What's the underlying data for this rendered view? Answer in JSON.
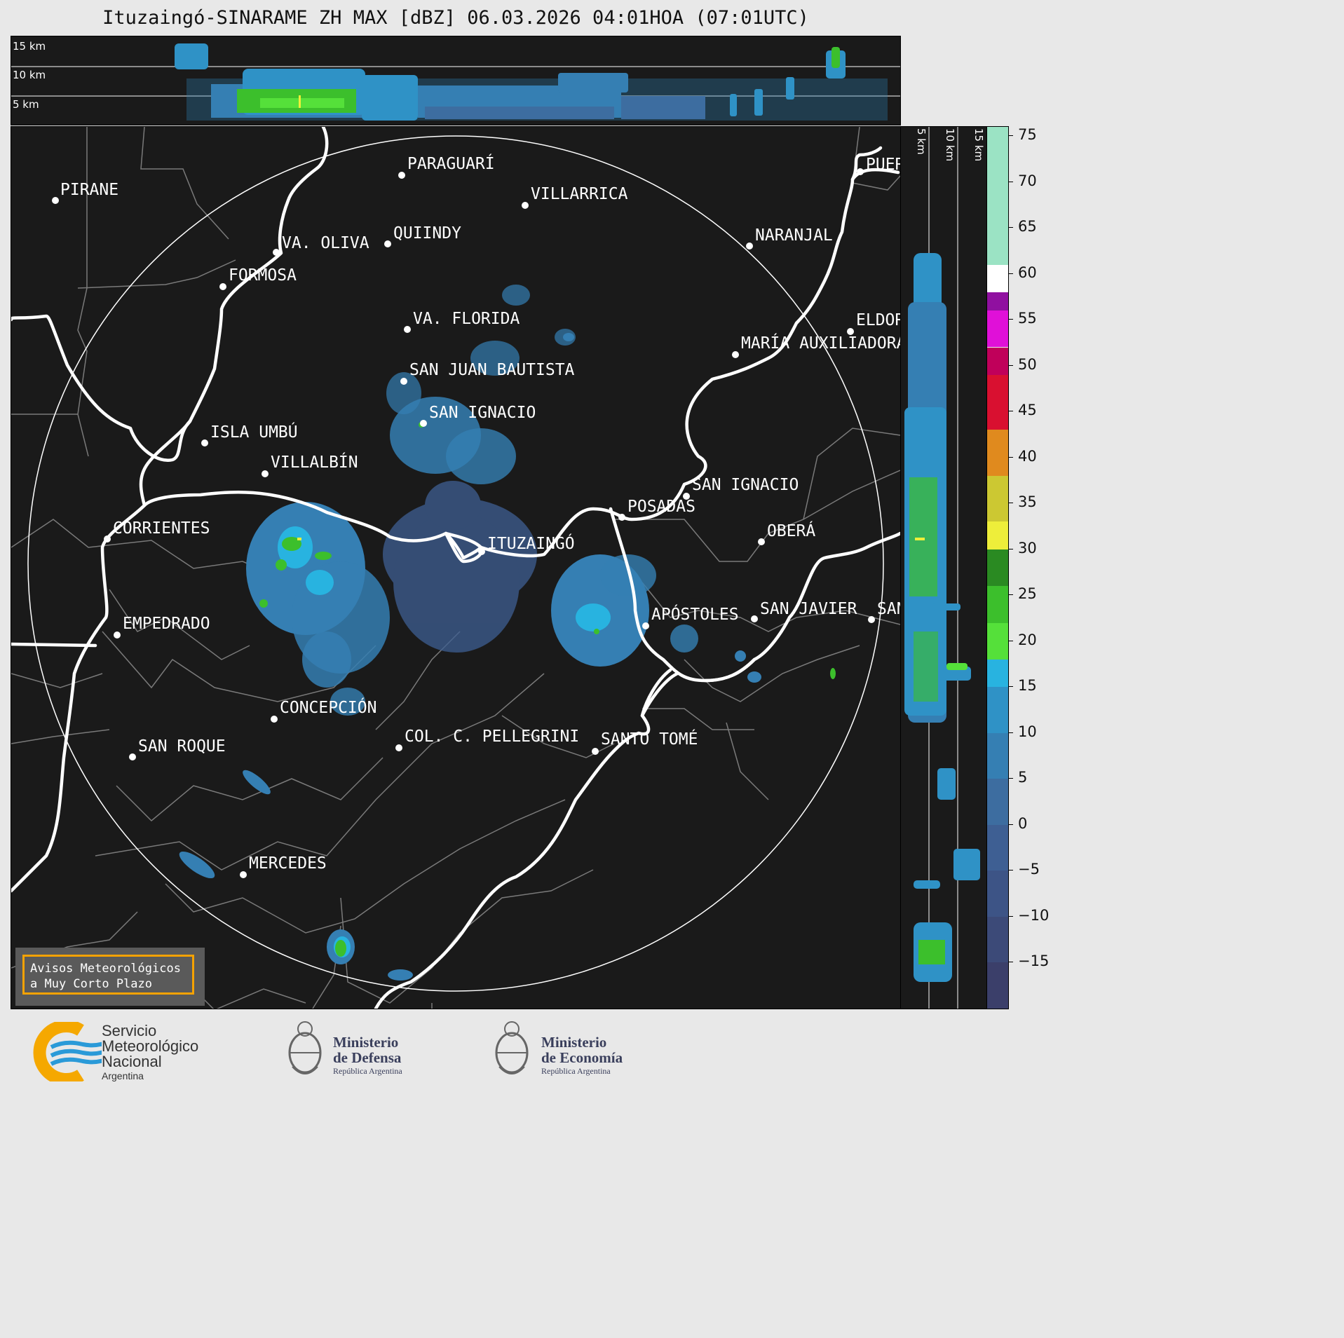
{
  "title": "Ituzaingó-SINARAME ZH MAX [dBZ] 06.03.2026 04:01HOA (07:01UTC)",
  "top_panel": {
    "alt_labels": [
      "15 km",
      "10 km",
      "5 km"
    ]
  },
  "side_panel": {
    "alt_labels": [
      "5 km",
      "10 km",
      "15 km"
    ]
  },
  "cities": [
    {
      "name": "PIRANE",
      "dot": [
        78,
        285
      ],
      "label": [
        85,
        257
      ]
    },
    {
      "name": "PARAGUARÍ",
      "dot": [
        572,
        249
      ],
      "label": [
        580,
        220
      ]
    },
    {
      "name": "VILLARRICA",
      "dot": [
        748,
        292
      ],
      "label": [
        756,
        263
      ]
    },
    {
      "name": "VA. OLIVA",
      "dot": [
        393,
        359
      ],
      "label": [
        401,
        333
      ]
    },
    {
      "name": "QUIINDY",
      "dot": [
        552,
        347
      ],
      "label": [
        560,
        319
      ]
    },
    {
      "name": "NARANJAL",
      "dot": [
        1068,
        350
      ],
      "label": [
        1076,
        322
      ]
    },
    {
      "name": "FORMOSA",
      "dot": [
        317,
        408
      ],
      "label": [
        325,
        379
      ]
    },
    {
      "name": "VA. FLORIDA",
      "dot": [
        580,
        469
      ],
      "label": [
        588,
        441
      ]
    },
    {
      "name": "ELDORADO",
      "dot": [
        1212,
        472
      ],
      "label": [
        1220,
        443
      ]
    },
    {
      "name": "MARÍA AUXILIADORA",
      "dot": [
        1048,
        505
      ],
      "label": [
        1056,
        476
      ]
    },
    {
      "name": "SAN JUAN BAUTISTA",
      "dot": [
        575,
        543
      ],
      "label": [
        583,
        514
      ]
    },
    {
      "name": "SAN IGNACIO",
      "dot": [
        603,
        603
      ],
      "label": [
        611,
        575
      ]
    },
    {
      "name": "ISLA UMBÚ",
      "dot": [
        291,
        631
      ],
      "label": [
        299,
        603
      ]
    },
    {
      "name": "VILLALBÍN",
      "dot": [
        377,
        675
      ],
      "label": [
        385,
        646
      ]
    },
    {
      "name": "SAN IGNACIO",
      "dot": [
        978,
        707
      ],
      "label": [
        986,
        678
      ]
    },
    {
      "name": "POSADAS",
      "dot": [
        886,
        737
      ],
      "label": [
        894,
        709
      ]
    },
    {
      "name": "CORRIENTES",
      "dot": [
        152,
        768
      ],
      "label": [
        160,
        740
      ]
    },
    {
      "name": "ITUZAINGÓ",
      "dot": [
        686,
        786
      ],
      "label": [
        694,
        762
      ]
    },
    {
      "name": "OBERÁ",
      "dot": [
        1085,
        772
      ],
      "label": [
        1093,
        744
      ]
    },
    {
      "name": "APÓSTOLES",
      "dot": [
        920,
        892
      ],
      "label": [
        928,
        863
      ]
    },
    {
      "name": "SAN JAVIER",
      "dot": [
        1075,
        882
      ],
      "label": [
        1083,
        855
      ]
    },
    {
      "name": "SANTO TOMÉ",
      "dot": [
        1242,
        883
      ],
      "label": [
        1250,
        855
      ]
    },
    {
      "name": "EMPEDRADO",
      "dot": [
        166,
        905
      ],
      "label": [
        174,
        876
      ]
    },
    {
      "name": "CONCEPCIÓN",
      "dot": [
        390,
        1025
      ],
      "label": [
        398,
        996
      ]
    },
    {
      "name": "COL. C. PELLEGRINI",
      "dot": [
        568,
        1066
      ],
      "label": [
        576,
        1037
      ]
    },
    {
      "name": "SANTO TOMÉ",
      "dot": [
        848,
        1071
      ],
      "label": [
        856,
        1041
      ]
    },
    {
      "name": "SAN ROQUE",
      "dot": [
        188,
        1079
      ],
      "label": [
        196,
        1051
      ]
    },
    {
      "name": "MERCEDES",
      "dot": [
        346,
        1247
      ],
      "label": [
        354,
        1218
      ]
    },
    {
      "name": "PUERTO ESPERANZA",
      "dot": [
        1226,
        244
      ],
      "label": [
        1234,
        221
      ]
    }
  ],
  "colorbar": {
    "min": -20,
    "max": 76,
    "ticks": [
      75,
      70,
      65,
      60,
      55,
      50,
      45,
      40,
      35,
      30,
      25,
      20,
      15,
      10,
      5,
      0,
      -5,
      -10,
      -15
    ],
    "tick_labels": [
      "75",
      "70",
      "65",
      "60",
      "55",
      "50",
      "45",
      "40",
      "35",
      "30",
      "25",
      "20",
      "15",
      "10",
      "5",
      "0",
      "−5",
      "−10",
      "−15"
    ],
    "segments": [
      {
        "from": -20,
        "to": -15,
        "color": "#3b3f6a"
      },
      {
        "from": -15,
        "to": -10,
        "color": "#3c4a78"
      },
      {
        "from": -10,
        "to": -5,
        "color": "#3d5486"
      },
      {
        "from": -5,
        "to": 0,
        "color": "#3e5f93"
      },
      {
        "from": 0,
        "to": 5,
        "color": "#3d6da0"
      },
      {
        "from": 5,
        "to": 10,
        "color": "#357fb3"
      },
      {
        "from": 10,
        "to": 15,
        "color": "#2f92c6"
      },
      {
        "from": 15,
        "to": 18,
        "color": "#28b3e0"
      },
      {
        "from": 18,
        "to": 22,
        "color": "#55e03a"
      },
      {
        "from": 22,
        "to": 26,
        "color": "#3cbf2c"
      },
      {
        "from": 26,
        "to": 30,
        "color": "#2a8a22"
      },
      {
        "from": 30,
        "to": 33,
        "color": "#eeee3a"
      },
      {
        "from": 33,
        "to": 38,
        "color": "#ccc832"
      },
      {
        "from": 38,
        "to": 43,
        "color": "#e08a1e"
      },
      {
        "from": 43,
        "to": 49,
        "color": "#d91030"
      },
      {
        "from": 49,
        "to": 52,
        "color": "#c0005a"
      },
      {
        "from": 52,
        "to": 56,
        "color": "#e010d8"
      },
      {
        "from": 56,
        "to": 58,
        "color": "#9010a0"
      },
      {
        "from": 58,
        "to": 61,
        "color": "#ffffff"
      },
      {
        "from": 61,
        "to": 76,
        "color": "#9be3c4"
      }
    ]
  },
  "avisos": {
    "line1": "Avisos Meteorológicos",
    "line2": "a Muy Corto Plazo"
  },
  "logos": {
    "smn": {
      "line1": "Servicio",
      "line2": "Meteorológico",
      "line3": "Nacional",
      "line4": "Argentina"
    },
    "defensa": {
      "line1": "Ministerio",
      "line2": "de Defensa",
      "line3": "República Argentina"
    },
    "economia": {
      "line1": "Ministerio",
      "line2": "de Economía",
      "line3": "República Argentina"
    }
  }
}
